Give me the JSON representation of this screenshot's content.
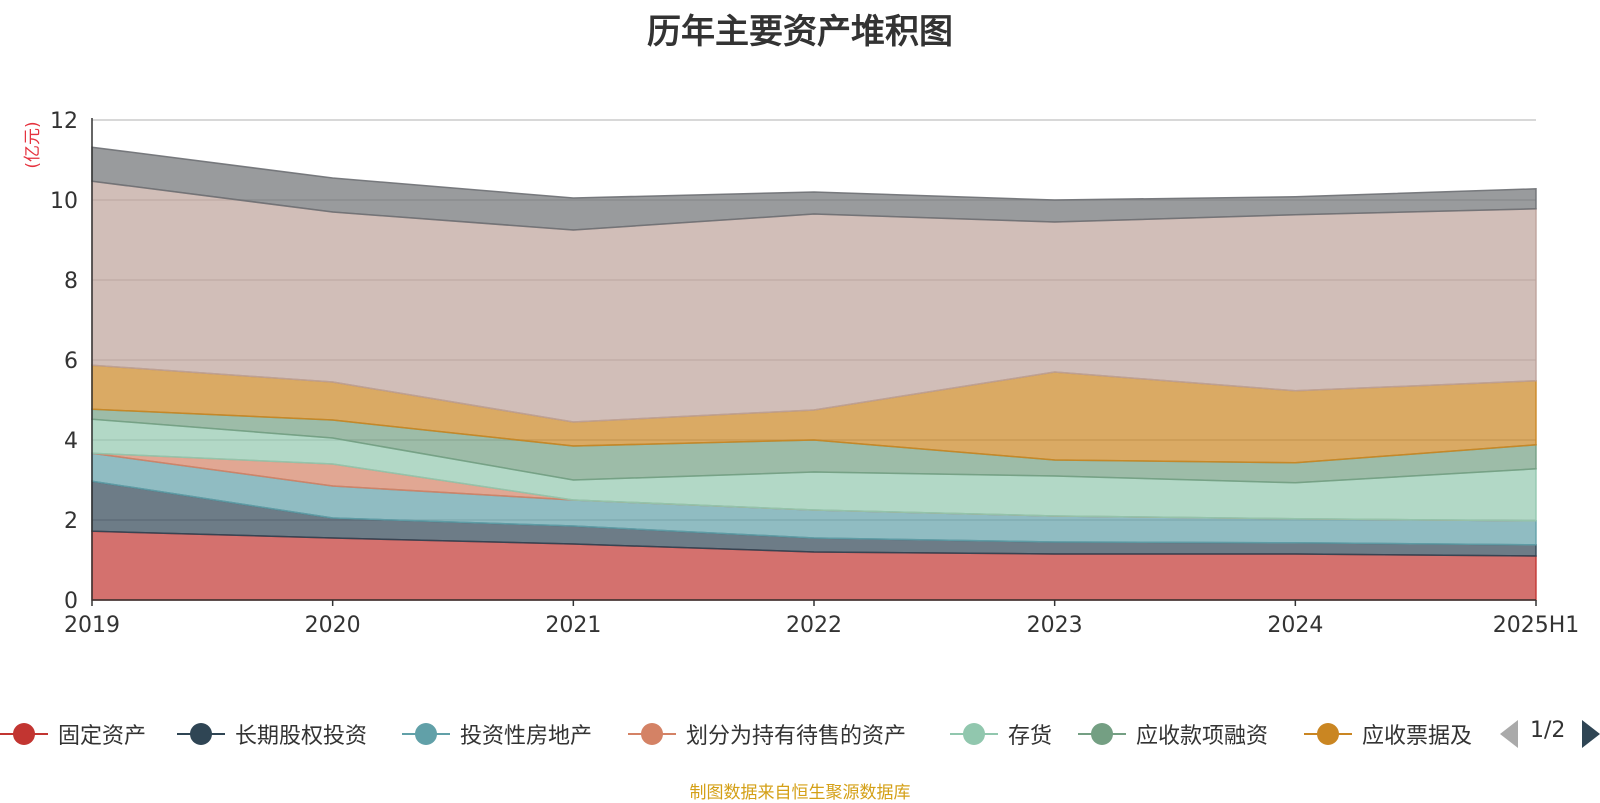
{
  "page": {
    "title": "历年主要资产堆积图",
    "source": "制图数据来自恒生聚源数据库",
    "pager": "1/2"
  },
  "chart_data": {
    "type": "area",
    "stacked": true,
    "title": "历年主要资产堆积图",
    "ylabel": "(亿元)",
    "ylim": [
      0,
      12
    ],
    "yticks": [
      0,
      2,
      4,
      6,
      8,
      10,
      12
    ],
    "categories": [
      "2019",
      "2020",
      "2021",
      "2022",
      "2023",
      "2024",
      "2025H1"
    ],
    "grid": true,
    "legend_position": "bottom",
    "series": [
      {
        "name": "固定资产",
        "color": "#c23531",
        "values": [
          1.72,
          1.55,
          1.4,
          1.2,
          1.15,
          1.15,
          1.1
        ]
      },
      {
        "name": "长期股权投资",
        "color": "#2f4554",
        "values": [
          1.25,
          0.5,
          0.45,
          0.35,
          0.3,
          0.28,
          0.28
        ]
      },
      {
        "name": "投资性房地产",
        "color": "#61a0a8",
        "values": [
          0.7,
          0.8,
          0.65,
          0.7,
          0.65,
          0.6,
          0.6
        ]
      },
      {
        "name": "划分为持有待售的资产",
        "color": "#d48265",
        "values": [
          0.0,
          0.55,
          0.0,
          0.0,
          0.0,
          0.0,
          0.0
        ]
      },
      {
        "name": "存货",
        "color": "#91c7ae",
        "values": [
          0.85,
          0.65,
          0.5,
          0.95,
          1.0,
          0.9,
          1.3
        ]
      },
      {
        "name": "应收款项融资",
        "color": "#749f83",
        "values": [
          0.25,
          0.45,
          0.85,
          0.8,
          0.4,
          0.5,
          0.6
        ]
      },
      {
        "name": "应收票据及",
        "color": "#ca8622",
        "values": [
          1.1,
          0.95,
          0.6,
          0.75,
          2.2,
          1.8,
          1.6
        ]
      },
      {
        "name": "",
        "color": "#bda29a",
        "values": [
          4.6,
          4.25,
          4.8,
          4.9,
          3.75,
          4.4,
          4.3
        ]
      },
      {
        "name": "",
        "color": "#6e7074",
        "values": [
          0.85,
          0.85,
          0.8,
          0.55,
          0.55,
          0.45,
          0.5
        ]
      }
    ]
  }
}
